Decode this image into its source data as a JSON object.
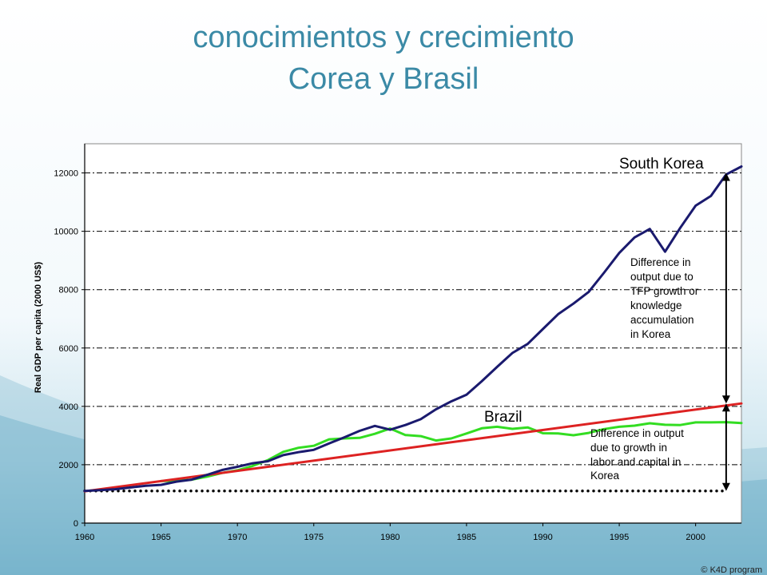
{
  "slide": {
    "title_line1": "conocimientos y crecimiento",
    "title_line2": "Corea y Brasil",
    "footer": "© K4D program",
    "title_color": "#3b8aa6"
  },
  "chart_data": {
    "type": "line",
    "title": "",
    "xlabel": "",
    "ylabel": "Real GDP per capita (2000 US$)",
    "xlim": [
      1960,
      2003
    ],
    "ylim": [
      0,
      13000
    ],
    "x_ticks": [
      1960,
      1965,
      1970,
      1975,
      1980,
      1985,
      1990,
      1995,
      2000
    ],
    "y_ticks": [
      0,
      2000,
      4000,
      6000,
      8000,
      10000,
      12000
    ],
    "grid": "horizontal dash-dot",
    "series": [
      {
        "name": "South Korea",
        "color": "#1a1a6e",
        "x": [
          1960,
          1961,
          1962,
          1963,
          1964,
          1965,
          1966,
          1967,
          1968,
          1969,
          1970,
          1971,
          1972,
          1973,
          1974,
          1975,
          1976,
          1977,
          1978,
          1979,
          1980,
          1981,
          1982,
          1983,
          1984,
          1985,
          1986,
          1987,
          1988,
          1989,
          1990,
          1991,
          1992,
          1993,
          1994,
          1995,
          1996,
          1997,
          1998,
          1999,
          2000,
          2001,
          2002,
          2003
        ],
        "values": [
          1100,
          1130,
          1160,
          1220,
          1280,
          1310,
          1420,
          1490,
          1650,
          1820,
          1930,
          2050,
          2120,
          2330,
          2430,
          2510,
          2730,
          2940,
          3160,
          3330,
          3200,
          3360,
          3560,
          3900,
          4170,
          4400,
          4860,
          5350,
          5830,
          6140,
          6650,
          7160,
          7520,
          7920,
          8580,
          9260,
          9790,
          10080,
          9300,
          10120,
          10880,
          11210,
          11950,
          12220
        ]
      },
      {
        "name": "Brazil",
        "color": "#33dd22",
        "x": [
          1965,
          1966,
          1967,
          1968,
          1969,
          1970,
          1971,
          1972,
          1973,
          1974,
          1975,
          1976,
          1977,
          1978,
          1979,
          1980,
          1981,
          1982,
          1983,
          1984,
          1985,
          1986,
          1987,
          1988,
          1989,
          1990,
          1991,
          1992,
          1993,
          1994,
          1995,
          1996,
          1997,
          1998,
          1999,
          2000,
          2001,
          2002,
          2003
        ],
        "values": [
          1440,
          1450,
          1490,
          1590,
          1720,
          1810,
          1960,
          2160,
          2440,
          2580,
          2650,
          2870,
          2900,
          2920,
          3060,
          3240,
          3020,
          2980,
          2830,
          2900,
          3070,
          3250,
          3300,
          3230,
          3280,
          3080,
          3070,
          3010,
          3090,
          3220,
          3300,
          3340,
          3420,
          3370,
          3360,
          3450,
          3450,
          3460,
          3430
        ]
      },
      {
        "name": "",
        "color": "#dd2222",
        "x": [
          1960,
          2003
        ],
        "values": [
          1090,
          4100
        ]
      },
      {
        "name": "",
        "color": "#000000",
        "style": "dotted",
        "x": [
          1960,
          2002
        ],
        "values": [
          1100,
          1100
        ]
      }
    ],
    "labels": {
      "korea": "South Korea",
      "brazil": "Brazil"
    },
    "annotations": {
      "tfp": [
        "Difference in",
        "output due to",
        "TFP growth or",
        "knowledge",
        "accumulation",
        "in Korea"
      ],
      "labor": [
        "Difference in output",
        "due to growth in",
        "labor and capital in",
        "Korea"
      ]
    },
    "arrows": [
      {
        "x": 2002,
        "from": 12000,
        "to": 4100
      },
      {
        "x": 2002,
        "from": 4100,
        "to": 1100
      }
    ]
  }
}
